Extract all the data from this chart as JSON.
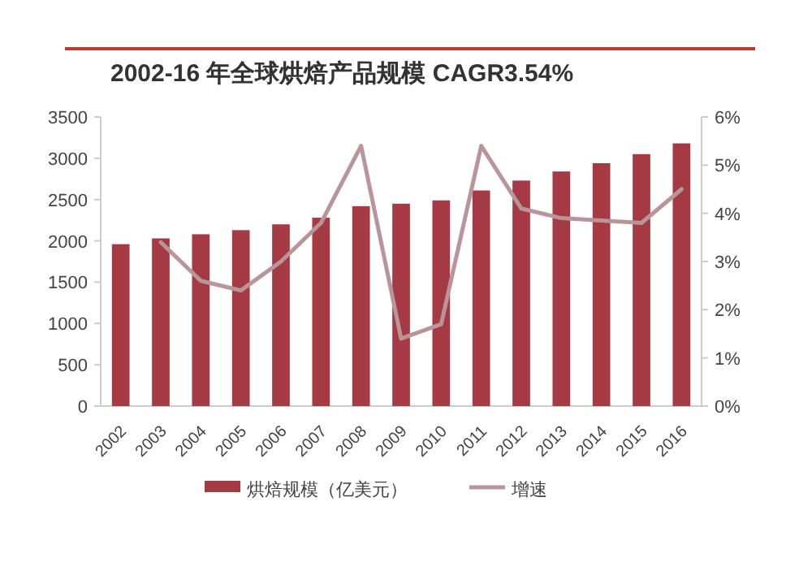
{
  "chart_data": {
    "type": "bar",
    "title": "2002-16 年全球烘焙产品规模 CAGR3.54%",
    "categories": [
      "2002",
      "2003",
      "2004",
      "2005",
      "2006",
      "2007",
      "2008",
      "2009",
      "2010",
      "2011",
      "2012",
      "2013",
      "2014",
      "2015",
      "2016"
    ],
    "series": [
      {
        "name": "烘焙规模（亿美元）",
        "color": "#a53a45",
        "values": [
          1960,
          2030,
          2080,
          2130,
          2200,
          2280,
          2420,
          2450,
          2490,
          2610,
          2730,
          2840,
          2940,
          3050,
          3180
        ]
      },
      {
        "name": "增速",
        "type": "line",
        "axis": "y2",
        "color": "#b9959a",
        "values": [
          null,
          3.4,
          2.6,
          2.4,
          3.0,
          3.8,
          5.4,
          1.4,
          1.7,
          5.4,
          4.1,
          3.9,
          3.85,
          3.8,
          4.5
        ]
      }
    ],
    "ylim": [
      0,
      3500
    ],
    "yticks": [
      0,
      500,
      1000,
      1500,
      2000,
      2500,
      3000,
      3500
    ],
    "y2lim": [
      0,
      6
    ],
    "y2ticks": [
      {
        "value": 0,
        "label": "0%"
      },
      {
        "value": 1,
        "label": "1%"
      },
      {
        "value": 2,
        "label": "2%"
      },
      {
        "value": 3,
        "label": "3%"
      },
      {
        "value": 4,
        "label": "4%"
      },
      {
        "value": 5,
        "label": "5%"
      },
      {
        "value": 6,
        "label": "6%"
      }
    ],
    "legend": "bottom",
    "line_style": "solid",
    "marker": "none"
  }
}
